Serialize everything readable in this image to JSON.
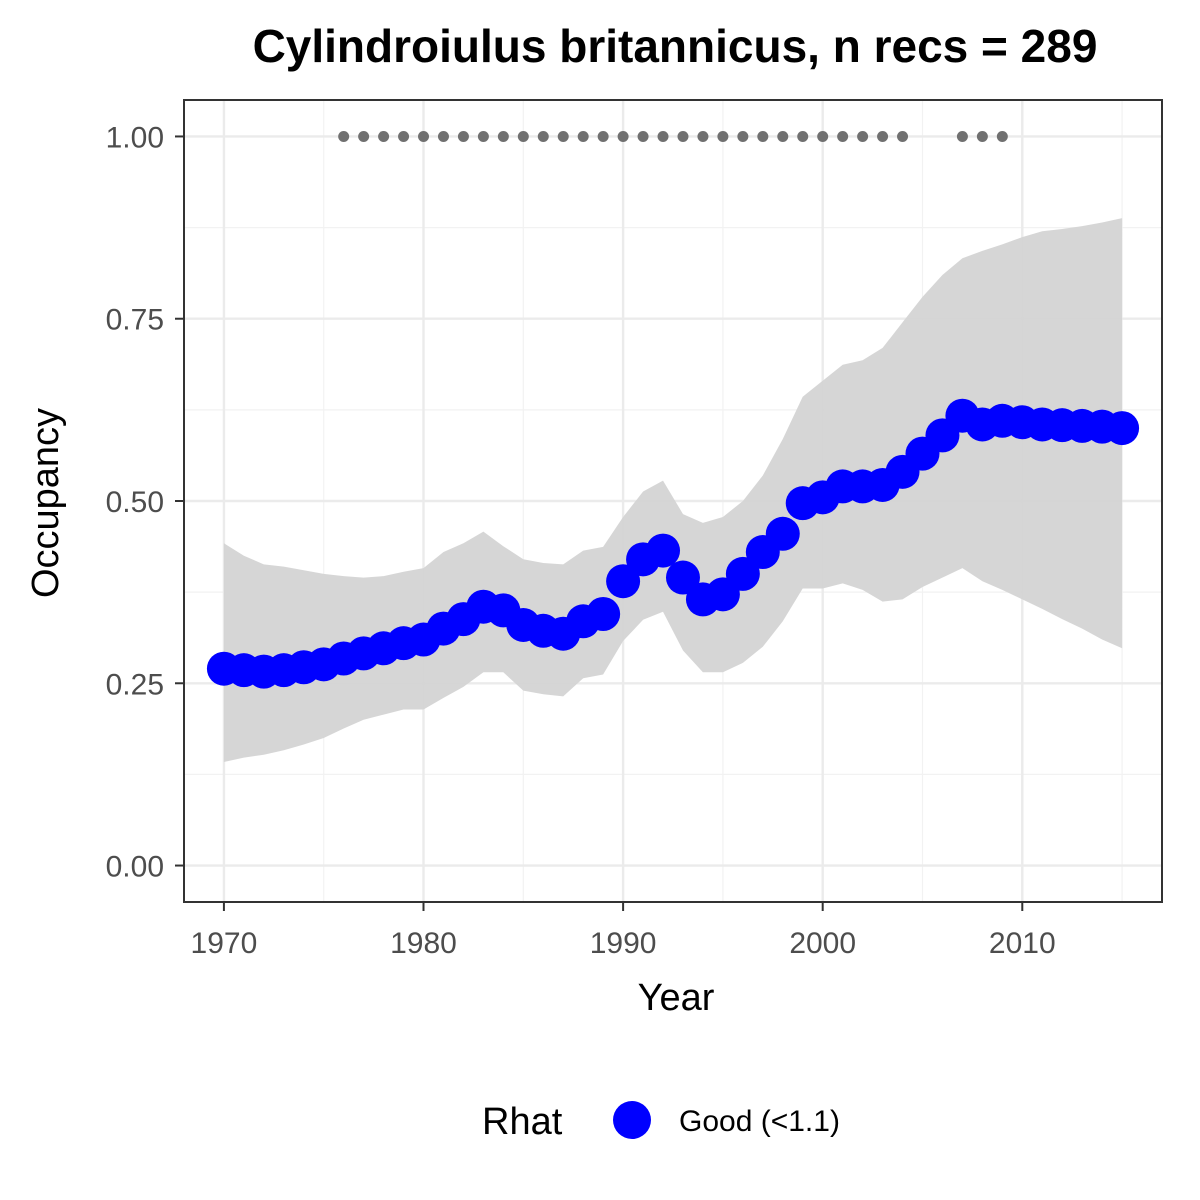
{
  "chart_data": {
    "type": "line",
    "title": "Cylindroiulus britannicus, n recs = 289",
    "xlabel": "Year",
    "ylabel": "Occupancy",
    "xlim": [
      1968,
      2017
    ],
    "ylim": [
      -0.05,
      1.05
    ],
    "x_ticks": [
      1970,
      1980,
      1990,
      2000,
      2010
    ],
    "x_tick_labels": [
      "1970",
      "1980",
      "1990",
      "2000",
      "2010"
    ],
    "y_ticks": [
      0,
      0.25,
      0.5,
      0.75,
      1
    ],
    "y_tick_labels": [
      "0.00",
      "0.25",
      "0.50",
      "0.75",
      "1.00"
    ],
    "grid": true,
    "x": [
      1970,
      1971,
      1972,
      1973,
      1974,
      1975,
      1976,
      1977,
      1978,
      1979,
      1980,
      1981,
      1982,
      1983,
      1984,
      1985,
      1986,
      1987,
      1988,
      1989,
      1990,
      1991,
      1992,
      1993,
      1994,
      1995,
      1996,
      1997,
      1998,
      1999,
      2000,
      2001,
      2002,
      2003,
      2004,
      2005,
      2006,
      2007,
      2008,
      2009,
      2010,
      2011,
      2012,
      2013,
      2014,
      2015
    ],
    "series": [
      {
        "values": [
          0.27,
          0.268,
          0.266,
          0.268,
          0.272,
          0.276,
          0.284,
          0.291,
          0.298,
          0.305,
          0.31,
          0.325,
          0.338,
          0.355,
          0.35,
          0.33,
          0.322,
          0.318,
          0.335,
          0.345,
          0.39,
          0.42,
          0.432,
          0.395,
          0.365,
          0.372,
          0.4,
          0.43,
          0.455,
          0.497,
          0.505,
          0.52,
          0.52,
          0.522,
          0.54,
          0.565,
          0.59,
          0.617,
          0.605,
          0.61,
          0.608,
          0.605,
          0.604,
          0.603,
          0.602,
          0.6
        ],
        "color": "#0000ff"
      }
    ],
    "ribbon": {
      "lower": [
        0.142,
        0.148,
        0.152,
        0.158,
        0.166,
        0.175,
        0.188,
        0.2,
        0.207,
        0.214,
        0.214,
        0.23,
        0.245,
        0.265,
        0.265,
        0.24,
        0.235,
        0.232,
        0.257,
        0.262,
        0.308,
        0.337,
        0.348,
        0.295,
        0.265,
        0.265,
        0.278,
        0.3,
        0.335,
        0.38,
        0.38,
        0.387,
        0.378,
        0.362,
        0.365,
        0.382,
        0.395,
        0.408,
        0.39,
        0.378,
        0.365,
        0.352,
        0.338,
        0.325,
        0.31,
        0.298
      ],
      "upper": [
        0.442,
        0.425,
        0.413,
        0.41,
        0.405,
        0.4,
        0.397,
        0.395,
        0.397,
        0.403,
        0.408,
        0.43,
        0.442,
        0.458,
        0.438,
        0.42,
        0.415,
        0.413,
        0.432,
        0.437,
        0.478,
        0.513,
        0.528,
        0.482,
        0.47,
        0.478,
        0.5,
        0.535,
        0.585,
        0.643,
        0.665,
        0.687,
        0.693,
        0.71,
        0.745,
        0.78,
        0.81,
        0.833,
        0.843,
        0.852,
        0.862,
        0.87,
        0.873,
        0.877,
        0.882,
        0.888
      ],
      "color": "#d4d4d4"
    },
    "rhat_marker_years": [
      1976,
      1977,
      1978,
      1979,
      1980,
      1981,
      1982,
      1983,
      1984,
      1985,
      1986,
      1987,
      1988,
      1989,
      1990,
      1991,
      1992,
      1993,
      1994,
      1995,
      1996,
      1997,
      1998,
      1999,
      2000,
      2001,
      2002,
      2003,
      2004,
      2007,
      2008,
      2009
    ],
    "rhat_marker_value": 1.0,
    "rhat_marker_color": "#707070",
    "legend": {
      "title": "Rhat",
      "items": [
        {
          "label": "Good (<1.1)",
          "color": "#0000ff"
        }
      ],
      "placement": "bottom"
    }
  }
}
